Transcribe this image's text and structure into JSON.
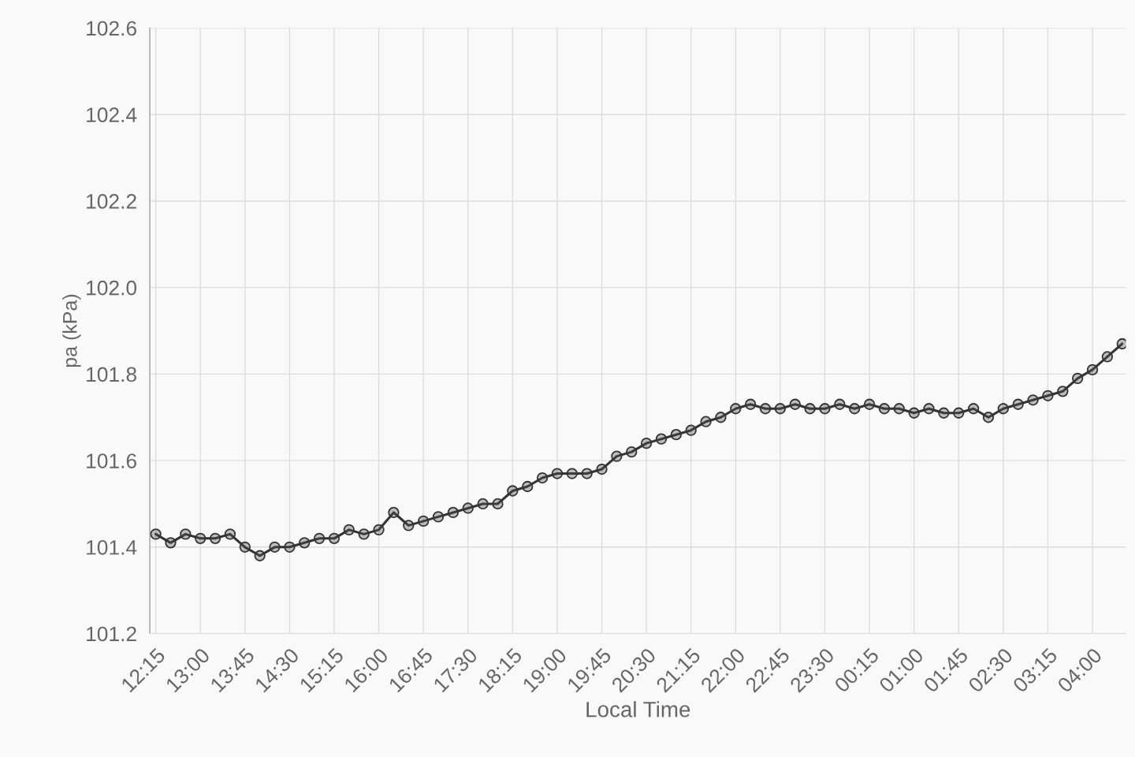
{
  "chart_data": {
    "type": "line",
    "xlabel": "Local Time",
    "ylabel": "pa (kPa)",
    "categories": [
      "12:15",
      null,
      null,
      "13:00",
      null,
      null,
      "13:45",
      null,
      null,
      "14:30",
      null,
      null,
      "15:15",
      null,
      null,
      "16:00",
      null,
      null,
      "16:45",
      null,
      null,
      "17:30",
      null,
      null,
      "18:15",
      null,
      null,
      "19:00",
      null,
      null,
      "19:45",
      null,
      null,
      "20:30",
      null,
      null,
      "21:15",
      null,
      null,
      "22:00",
      null,
      null,
      "22:45",
      null,
      null,
      "23:30",
      null,
      null,
      "00:15",
      null,
      null,
      "01:00",
      null,
      null,
      "01:45",
      null,
      null,
      "02:30",
      null,
      null,
      "03:15",
      null,
      null,
      "04:00",
      null,
      null
    ],
    "series": [
      {
        "color": "#333333",
        "values": [
          101.43,
          101.41,
          101.43,
          101.42,
          101.42,
          101.43,
          101.4,
          101.38,
          101.4,
          101.4,
          101.41,
          101.42,
          101.42,
          101.44,
          101.43,
          101.44,
          101.48,
          101.45,
          101.46,
          101.47,
          101.48,
          101.49,
          101.5,
          101.5,
          101.53,
          101.54,
          101.56,
          101.57,
          101.57,
          101.57,
          101.58,
          101.61,
          101.62,
          101.64,
          101.65,
          101.66,
          101.67,
          101.69,
          101.7,
          101.72,
          101.73,
          101.72,
          101.72,
          101.73,
          101.72,
          101.72,
          101.73,
          101.72,
          101.73,
          101.72,
          101.72,
          101.71,
          101.72,
          101.71,
          101.71,
          101.72,
          101.7,
          101.72,
          101.73,
          101.74,
          101.75,
          101.76,
          101.79,
          101.81,
          101.84,
          101.87
        ]
      }
    ],
    "ylim": [
      101.2,
      102.6
    ],
    "yticks": [
      101.2,
      101.4,
      101.6,
      101.8,
      {
        "value": 102.0,
        "label": "102.0"
      },
      102.2,
      102.4,
      102.6
    ],
    "grid": true,
    "marker": "circle",
    "line_style": "solid"
  }
}
